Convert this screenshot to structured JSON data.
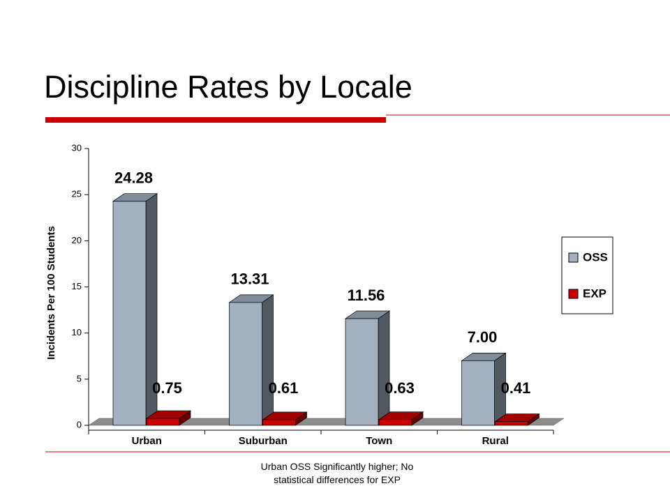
{
  "chart_data": {
    "type": "bar3d",
    "title": "Discipline Rates by Locale",
    "y_label": "Incidents Per 100 Students",
    "categories": [
      "Urban",
      "Suburban",
      "Town",
      "Rural"
    ],
    "series": [
      {
        "name": "OSS",
        "color": "#a3b0c0",
        "values": [
          24.28,
          13.31,
          11.56,
          7.0
        ],
        "value_labels": [
          "24.28",
          "13.31",
          "11.56",
          "7.00"
        ]
      },
      {
        "name": "EXP",
        "color": "#cc0000",
        "values": [
          0.75,
          0.61,
          0.63,
          0.41
        ],
        "value_labels": [
          "0.75",
          "0.61",
          "0.63",
          "0.41"
        ]
      }
    ],
    "ylim": [
      0,
      30
    ],
    "yticks": [
      0,
      5,
      10,
      15,
      20,
      25,
      30
    ],
    "grid": false,
    "legend": "right",
    "note": "Urban OSS Significantly higher; No statistical differences for EXP"
  }
}
